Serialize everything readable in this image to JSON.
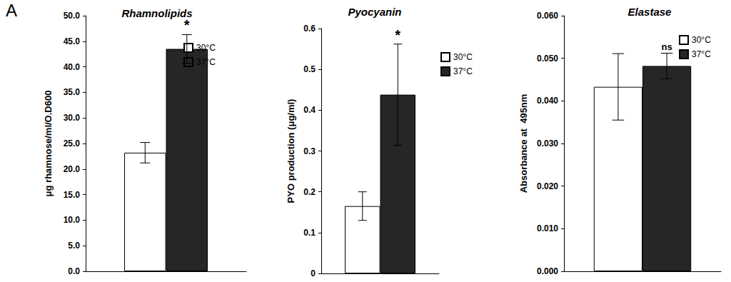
{
  "panel_label": "A",
  "chart_data": [
    {
      "type": "bar",
      "title": "Rhamnolipids",
      "y_label": "μg rhamnose/ml/O.D600",
      "categories": [
        null
      ],
      "series": [
        {
          "name": "30°C",
          "color": "#ffffff",
          "values": [
            23.2
          ],
          "errors": [
            2.0
          ]
        },
        {
          "name": "37°C",
          "color": "#262626",
          "values": [
            43.5
          ],
          "errors": [
            2.8
          ]
        }
      ],
      "annotation": "*",
      "ylim": [
        0,
        50
      ],
      "yticks": [
        {
          "value": 0,
          "label": "0.0"
        },
        {
          "value": 5,
          "label": "5.0"
        },
        {
          "value": 10,
          "label": "10.0"
        },
        {
          "value": 15,
          "label": "15.0"
        },
        {
          "value": 20,
          "label": "20.0"
        },
        {
          "value": 25,
          "label": "25.0"
        },
        {
          "value": 30,
          "label": "30.0"
        },
        {
          "value": 35,
          "label": "35.0"
        },
        {
          "value": 40,
          "label": "40.0"
        },
        {
          "value": 45,
          "label": "45.0"
        },
        {
          "value": 50,
          "label": "50.0"
        }
      ],
      "grid": false,
      "legend": "upper right",
      "tick_labels": "y"
    },
    {
      "type": "bar",
      "title": "Pyocyanin",
      "y_label": "PYO production (μg/ml)",
      "categories": [
        null
      ],
      "series": [
        {
          "name": "30°C",
          "color": "#ffffff",
          "values": [
            0.165
          ],
          "errors": [
            0.035
          ]
        },
        {
          "name": "37°C",
          "color": "#262626",
          "values": [
            0.438
          ],
          "errors": [
            0.124
          ]
        }
      ],
      "annotation": "*",
      "ylim": [
        0,
        0.6
      ],
      "yticks": [
        0,
        0.1,
        0.2,
        0.3,
        0.4,
        0.5,
        0.6
      ],
      "grid": false,
      "legend": "upper right",
      "tick_labels": "y"
    },
    {
      "type": "bar",
      "title": "Elastase",
      "y_label": "Absorbance at  495nm",
      "categories": [
        null
      ],
      "series": [
        {
          "name": "30°C",
          "color": "#ffffff",
          "values": [
            0.0433
          ],
          "errors": [
            0.0078
          ]
        },
        {
          "name": "37°C",
          "color": "#262626",
          "values": [
            0.0482
          ],
          "errors": [
            0.003
          ]
        }
      ],
      "annotation": "ns",
      "ylim": [
        0,
        0.06
      ],
      "yticks": [
        {
          "value": 0,
          "label": "0.000"
        },
        {
          "value": 0.01,
          "label": "0.010"
        },
        {
          "value": 0.02,
          "label": "0.020"
        },
        {
          "value": 0.03,
          "label": "0.030"
        },
        {
          "value": 0.04,
          "label": "0.040"
        },
        {
          "value": 0.05,
          "label": "0.050"
        },
        {
          "value": 0.06,
          "label": "0.060"
        }
      ],
      "grid": false,
      "legend": "upper right",
      "tick_labels": "y"
    }
  ]
}
